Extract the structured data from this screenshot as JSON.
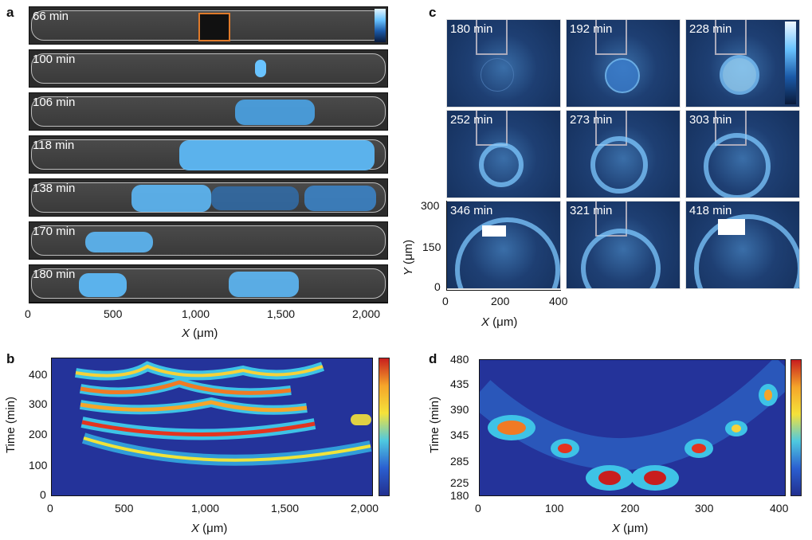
{
  "panels": {
    "a": {
      "letter": "a",
      "strips": [
        {
          "label": "66 min"
        },
        {
          "label": "100 min"
        },
        {
          "label": "106 min"
        },
        {
          "label": "118 min"
        },
        {
          "label": "138 min"
        },
        {
          "label": "170 min"
        },
        {
          "label": "180 min"
        }
      ],
      "x_ticks": [
        "0",
        "500",
        "1,000",
        "1,500",
        "2,000"
      ],
      "x_title_var": "X",
      "x_title_unit": " (μm)"
    },
    "b": {
      "letter": "b",
      "y_title": "Time (min)",
      "y_ticks": [
        "400",
        "300",
        "200",
        "100",
        "0"
      ],
      "x_ticks": [
        "0",
        "500",
        "1,000",
        "1,500",
        "2,000"
      ],
      "x_title_var": "X",
      "x_title_unit": " (μm)"
    },
    "c": {
      "letter": "c",
      "cells": [
        {
          "label": "180 min"
        },
        {
          "label": "192 min"
        },
        {
          "label": "228 min"
        },
        {
          "label": "252 min"
        },
        {
          "label": "273 min"
        },
        {
          "label": "303 min"
        },
        {
          "label": "346 min"
        },
        {
          "label": "321 min"
        },
        {
          "label": "418 min"
        }
      ],
      "y_ticks": [
        "300",
        "150",
        "0"
      ],
      "y_title_var": "Y",
      "y_title_unit": " (μm)",
      "x_ticks": [
        "0",
        "200",
        "400"
      ],
      "x_title_var": "X",
      "x_title_unit": " (μm)"
    },
    "d": {
      "letter": "d",
      "y_title": "Time (min)",
      "y_ticks": [
        "480",
        "435",
        "390",
        "345",
        "285",
        "225",
        "180"
      ],
      "x_ticks": [
        "0",
        "100",
        "200",
        "300",
        "400"
      ],
      "x_title_var": "X",
      "x_title_unit": " (μm)"
    }
  },
  "colors": {
    "glow": "#69c3ff",
    "heat_low": "#22308f",
    "heat_high": "#d7261e"
  }
}
